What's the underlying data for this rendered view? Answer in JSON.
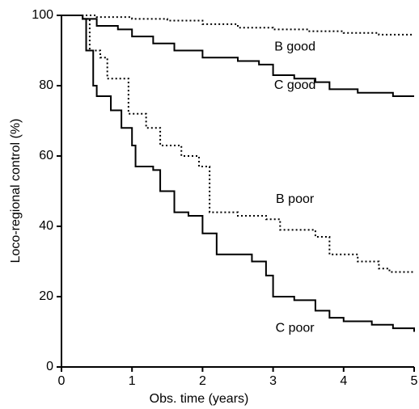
{
  "chart_data": {
    "type": "step",
    "xlabel": "Obs. time (years)",
    "ylabel": "Loco-regional control (%)",
    "xlim": [
      0,
      5
    ],
    "xticks": [
      0,
      1,
      2,
      3,
      4,
      5
    ],
    "ylim": [
      0,
      100
    ],
    "yticks": [
      0,
      20,
      40,
      60,
      80,
      100
    ],
    "grid": false,
    "series": [
      {
        "name": "B good",
        "color": "#000000",
        "dash": "dotted",
        "x": [
          0,
          0.5,
          1,
          1.5,
          2,
          2.5,
          3,
          3.5,
          4,
          4.5,
          5
        ],
        "values": [
          100,
          99.5,
          99,
          98.5,
          97.5,
          96.5,
          96,
          95.5,
          95,
          94.5,
          94.5
        ]
      },
      {
        "name": "C good",
        "color": "#000000",
        "dash": "solid",
        "x": [
          0,
          0.3,
          0.5,
          0.8,
          1,
          1.3,
          1.6,
          2,
          2.5,
          2.8,
          3,
          3.3,
          3.6,
          3.8,
          4.2,
          4.7,
          5
        ],
        "values": [
          100,
          99,
          97,
          96,
          94,
          92,
          90,
          88,
          87,
          86,
          83,
          82,
          81,
          79,
          78,
          77,
          77
        ]
      },
      {
        "name": "B poor",
        "color": "#000000",
        "dash": "dotted",
        "x": [
          0,
          0.3,
          0.4,
          0.55,
          0.65,
          0.95,
          1.2,
          1.4,
          1.7,
          1.95,
          2.1,
          2.5,
          2.9,
          3.1,
          3.6,
          3.8,
          4.2,
          4.5,
          4.65,
          5
        ],
        "values": [
          100,
          99,
          90,
          88,
          82,
          72,
          68,
          63,
          60,
          57,
          44,
          43,
          42,
          39,
          37,
          32,
          30,
          28,
          27,
          27
        ]
      },
      {
        "name": "C poor",
        "color": "#000000",
        "dash": "solid",
        "x": [
          0,
          0.3,
          0.35,
          0.45,
          0.5,
          0.7,
          0.85,
          1,
          1.05,
          1.3,
          1.4,
          1.6,
          1.8,
          2.0,
          2.2,
          2.7,
          2.9,
          3.0,
          3.3,
          3.6,
          3.8,
          4.0,
          4.4,
          4.7,
          5
        ],
        "values": [
          100,
          99,
          90,
          80,
          77,
          73,
          68,
          63,
          57,
          56,
          50,
          44,
          43,
          38,
          32,
          30,
          26,
          20,
          19,
          16,
          14,
          13,
          12,
          11,
          10
        ]
      }
    ]
  }
}
